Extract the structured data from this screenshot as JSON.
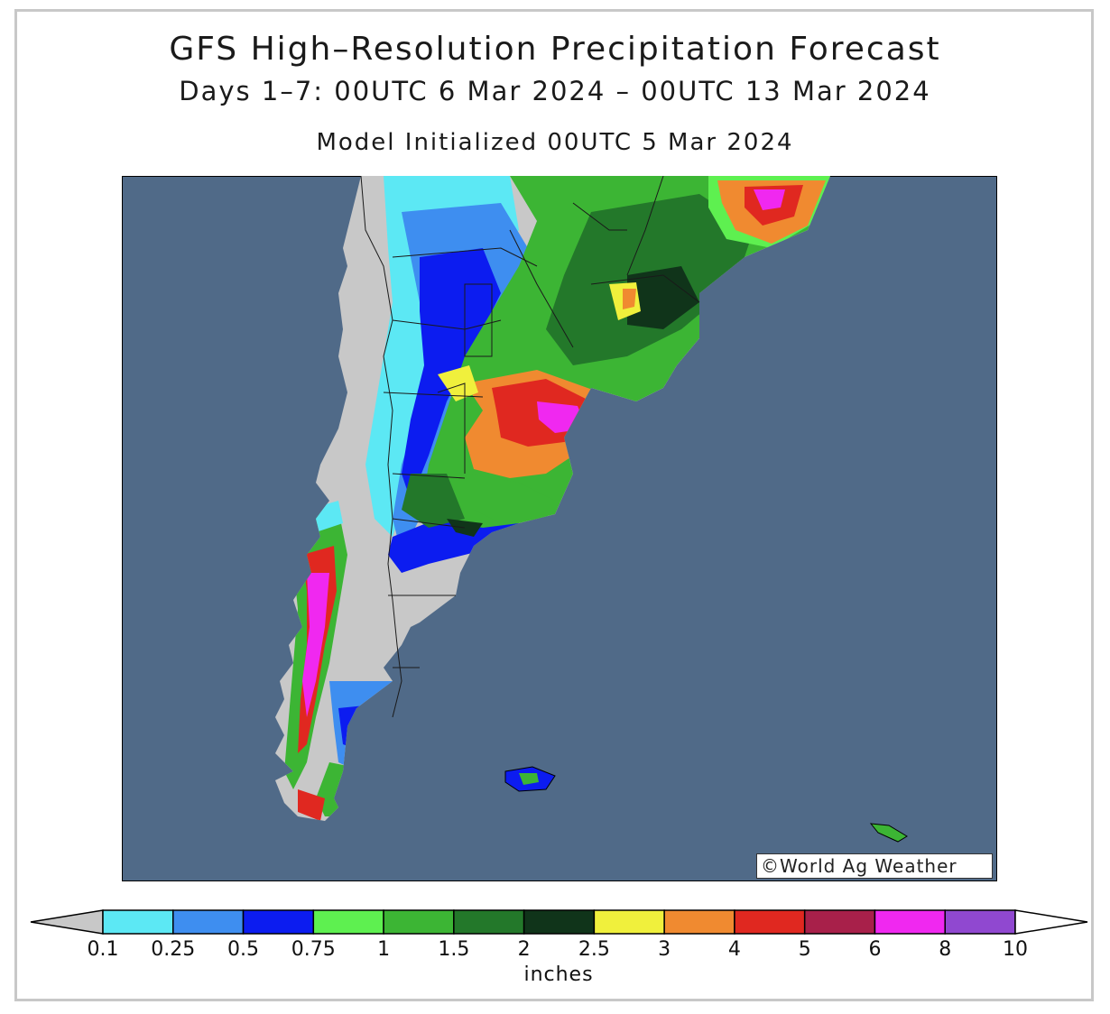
{
  "title": "GFS High–Resolution Precipitation Forecast",
  "subtitle": "Days 1–7: 00UTC 6 Mar 2024 – 00UTC 13 Mar 2024",
  "init": "Model Initialized 00UTC 5 Mar 2024",
  "credit": "©World Ag Weather",
  "legend": {
    "unit": "inches",
    "ticks": [
      "0.1",
      "0.25",
      "0.5",
      "0.75",
      "1",
      "1.5",
      "2",
      "2.5",
      "3",
      "4",
      "5",
      "6",
      "8",
      "10"
    ],
    "colors": [
      "#5ce8f4",
      "#3e8ef0",
      "#0c1cf0",
      "#5ef050",
      "#3cb534",
      "#23782a",
      "#10341a",
      "#f0f03c",
      "#f08a30",
      "#e02820",
      "#a8204a",
      "#f028f0",
      "#9048d0"
    ],
    "under_color": "#c8c8c8",
    "over_color": "#ffffff"
  },
  "map_colors": {
    "ocean": "#506a88",
    "dry_land": "#c8c8c8",
    "border": "#000000"
  }
}
